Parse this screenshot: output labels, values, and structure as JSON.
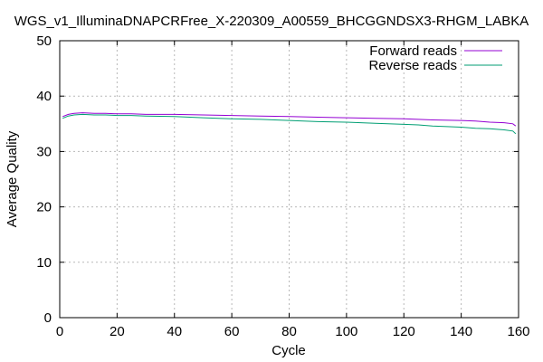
{
  "chart_data": {
    "type": "line",
    "title": "WGS_v1_IlluminaDNAPCRFree_X-220309_A00559_BHCGGNDSX3-RHGM_LABKA",
    "xlabel": "Cycle",
    "ylabel": "Average Quality",
    "xlim": [
      0,
      160
    ],
    "ylim": [
      0,
      50
    ],
    "xticks": [
      0,
      20,
      40,
      60,
      80,
      100,
      120,
      140,
      160
    ],
    "yticks": [
      0,
      10,
      20,
      30,
      40,
      50
    ],
    "grid": true,
    "legend_position": "top-right",
    "series": [
      {
        "name": "Forward reads",
        "color": "#9400d3",
        "points": [
          [
            1,
            36.3
          ],
          [
            3,
            36.7
          ],
          [
            5,
            36.9
          ],
          [
            8,
            37.0
          ],
          [
            12,
            36.9
          ],
          [
            16,
            36.9
          ],
          [
            20,
            36.8
          ],
          [
            25,
            36.8
          ],
          [
            30,
            36.7
          ],
          [
            40,
            36.7
          ],
          [
            50,
            36.6
          ],
          [
            60,
            36.5
          ],
          [
            70,
            36.4
          ],
          [
            80,
            36.3
          ],
          [
            90,
            36.2
          ],
          [
            100,
            36.1
          ],
          [
            110,
            36.0
          ],
          [
            120,
            35.9
          ],
          [
            130,
            35.7
          ],
          [
            140,
            35.6
          ],
          [
            145,
            35.5
          ],
          [
            150,
            35.3
          ],
          [
            155,
            35.2
          ],
          [
            158,
            35.0
          ],
          [
            159,
            34.6
          ]
        ]
      },
      {
        "name": "Reverse reads",
        "color": "#009e73",
        "points": [
          [
            1,
            36.0
          ],
          [
            3,
            36.4
          ],
          [
            5,
            36.6
          ],
          [
            8,
            36.7
          ],
          [
            12,
            36.6
          ],
          [
            16,
            36.6
          ],
          [
            20,
            36.5
          ],
          [
            25,
            36.5
          ],
          [
            30,
            36.4
          ],
          [
            40,
            36.3
          ],
          [
            50,
            36.1
          ],
          [
            60,
            35.9
          ],
          [
            70,
            35.8
          ],
          [
            80,
            35.6
          ],
          [
            90,
            35.4
          ],
          [
            100,
            35.3
          ],
          [
            110,
            35.1
          ],
          [
            120,
            34.9
          ],
          [
            125,
            34.8
          ],
          [
            130,
            34.6
          ],
          [
            135,
            34.5
          ],
          [
            140,
            34.4
          ],
          [
            145,
            34.2
          ],
          [
            150,
            34.1
          ],
          [
            155,
            33.9
          ],
          [
            158,
            33.7
          ],
          [
            159,
            33.2
          ]
        ]
      }
    ]
  }
}
